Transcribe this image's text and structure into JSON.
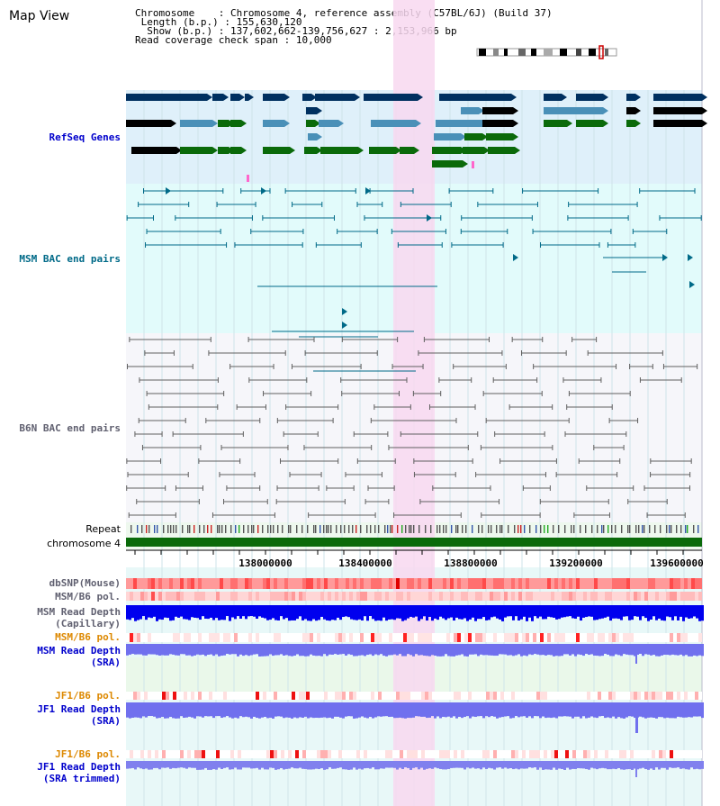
{
  "view_title": "Map View",
  "info": {
    "chromosome_label": "Chromosome",
    "chromosome_value": "Chromosome 4, reference assembly (C57BL/6J) (Build 37)",
    "length_label": "Length (b.p.)",
    "length_value": "155,630,120",
    "show_label": "Show (b.p.)",
    "show_value": "137,602,662-139,756,627 : 2,153,966 bp",
    "coverage_label": "Read coverage check span",
    "coverage_value": "10,000"
  },
  "tracks": {
    "refseq": "RefSeq Genes",
    "msm_bac": "MSM BAC end pairs",
    "b6n_bac": "B6N BAC end pairs",
    "repeat": "Repeat",
    "chromosome": "chromosome 4",
    "dbsnp": "dbSNP(Mouse)",
    "msm_b6_pol_1": "MSM/B6 pol.",
    "msm_depth_cap_1": "MSM Read Depth",
    "msm_depth_cap_2": "(Capillary)",
    "msm_b6_pol_2": "MSM/B6 pol.",
    "msm_depth_sra_1": "MSM Read Depth",
    "msm_depth_sra_2": "(SRA)",
    "jf1_b6_pol_1": "JF1/B6 pol.",
    "jf1_depth_sra_1": "JF1 Read Depth",
    "jf1_depth_sra_2": "(SRA)",
    "jf1_b6_pol_2": "JF1/B6 pol.",
    "jf1_depth_trim_1": "JF1 Read Depth",
    "jf1_depth_trim_2": "(SRA trimmed)"
  },
  "axis": {
    "ticks": [
      "138000000",
      "138400000",
      "138800000",
      "139200000",
      "139600000"
    ]
  },
  "colors": {
    "highlight": "#f8d8f0",
    "refseq_bg": "#dff0fa",
    "msm_bg": "#e2fbfb",
    "b6n_bg": "#f6f6fa",
    "gene_dark": "#003060",
    "gene_mid": "#4a90b8",
    "gene_green": "#0a6a0a",
    "bac_msm": "#006a88",
    "bac_b6n": "#606060",
    "depth_blue": "#0000ee",
    "sra_blue": "#7070ee",
    "label_blue": "#0000cc",
    "label_teal": "#006a88",
    "label_gray": "#606070",
    "label_orange": "#dd8800"
  }
}
